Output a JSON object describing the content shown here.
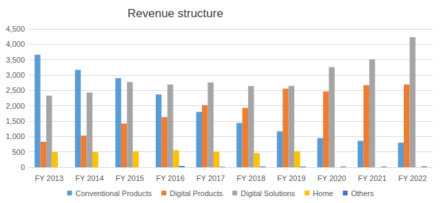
{
  "chart_data": {
    "type": "bar",
    "title": "Revenue structure",
    "categories": [
      "FY 2013",
      "FY 2014",
      "FY 2015",
      "FY 2016",
      "FY 2017",
      "FY 2018",
      "FY 2019",
      "FY 2020",
      "FY 2021",
      "FY 2022"
    ],
    "series": [
      {
        "name": "Conventional Products",
        "color": "#5b9bd5",
        "values": [
          3660,
          3170,
          2900,
          2370,
          1800,
          1440,
          1170,
          950,
          860,
          800
        ]
      },
      {
        "name": "Digital Products",
        "color": "#ed7d31",
        "values": [
          830,
          1030,
          1420,
          1630,
          2020,
          1930,
          2560,
          2460,
          2670,
          2690
        ]
      },
      {
        "name": "Digital Solutions",
        "color": "#a5a5a5",
        "values": [
          2330,
          2430,
          2770,
          2690,
          2760,
          2640,
          2650,
          3260,
          3510,
          4230
        ]
      },
      {
        "name": "Home",
        "color": "#ffc000",
        "values": [
          490,
          490,
          520,
          550,
          510,
          460,
          520,
          null,
          null,
          null
        ]
      },
      {
        "name": "Others",
        "color": "#4472c4",
        "values": [
          null,
          null,
          null,
          40,
          15,
          20,
          20,
          20,
          20,
          25
        ]
      }
    ],
    "ylim": [
      0,
      4500
    ],
    "yticks": [
      0,
      500,
      1000,
      1500,
      2000,
      2500,
      3000,
      3500,
      4000,
      4500
    ],
    "grid": true,
    "legend": "bottom"
  }
}
